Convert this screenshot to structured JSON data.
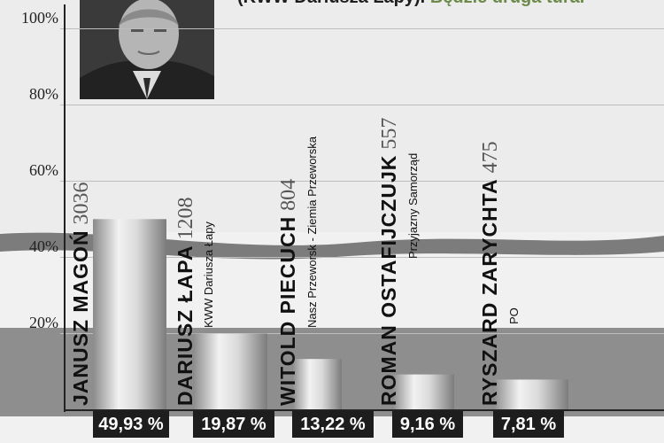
{
  "headline": {
    "text": "(KWW Dariusza Łapy).",
    "highlight": "Będzie druga tura."
  },
  "colors": {
    "bar_light": "#f2f2f2",
    "bar_dark": "#8a8a8a",
    "background_band": "#8e8e8e",
    "percent_box": "#1d1d1d"
  },
  "chart_data": {
    "type": "bar",
    "categories": [
      "JANUSZ MAGOŃ",
      "DARIUSZ ŁAPA",
      "WITOLD PIECUCH",
      "ROMAN OSTAFIJCZUJK",
      "RYSZARD ZARYCHTA"
    ],
    "parties": [
      "",
      "KWW Dariusza Łapy",
      "Nasz Przeworsk - Ziemia Przeworska",
      "Przyjazny Samorząd",
      "PO"
    ],
    "votes": [
      "3036",
      "1208",
      "804",
      "557",
      "475"
    ],
    "values": [
      49.93,
      19.87,
      13.22,
      9.16,
      7.81
    ],
    "value_labels": [
      "49,93 %",
      "19,87 %",
      "13,22 %",
      "9,16 %",
      "7,81 %"
    ],
    "ylim": [
      0,
      115
    ],
    "y_ticks": [
      20,
      40,
      60,
      80,
      100
    ],
    "y_tick_labels": [
      "20%",
      "40%",
      "60%",
      "80%",
      "100%"
    ],
    "grid": true,
    "title": "",
    "xlabel": "",
    "ylabel": ""
  }
}
